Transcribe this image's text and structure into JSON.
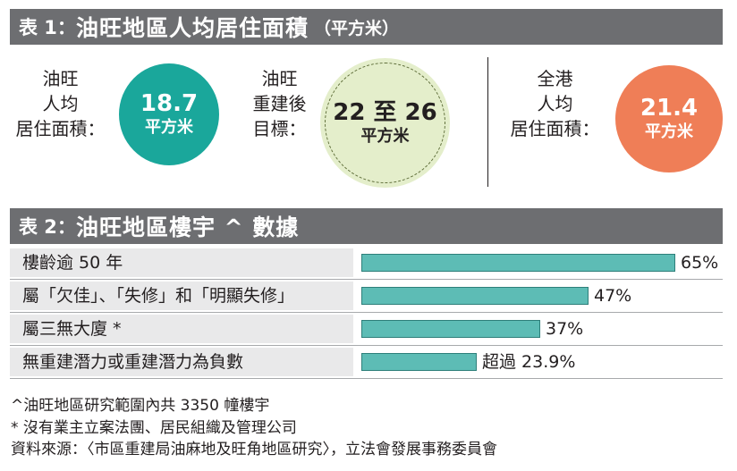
{
  "table1": {
    "prefix": "表 1：",
    "title": "油旺地區人均居住面積",
    "unit": "（平方米）",
    "stats": [
      {
        "label": "油旺\n人均\n居住面積：",
        "value": "18.7",
        "unit": "平方米",
        "color": "#1aa79b"
      },
      {
        "label": "油旺\n重建後\n目標：",
        "value": "22 至 26",
        "unit": "平方米",
        "color": "#e4eecb"
      },
      {
        "label": "全港\n人均\n居住面積：",
        "value": "21.4",
        "unit": "平方米",
        "color": "#ef7e57"
      }
    ]
  },
  "table2": {
    "prefix": "表 2：",
    "title": "油旺地區樓宇 ^ 數據"
  },
  "chart_data": {
    "type": "bar",
    "orientation": "horizontal",
    "categories": [
      "樓齡逾 50 年",
      "屬「欠佳」、「失修」和「明顯失修」",
      "屬三無大廈 *",
      "無重建潛力或重建潛力為負數"
    ],
    "values": [
      65,
      47,
      37,
      23.9
    ],
    "value_labels": [
      "65%",
      "47%",
      "37%",
      "超過 23.9%"
    ],
    "bar_color": "#5dbcb5",
    "xlim": [
      0,
      100
    ]
  },
  "notes": {
    "caret": "^油旺地區研究範圍內共 3350 幢樓宇",
    "star": "* 沒有業主立案法團、居民組織及管理公司",
    "source": "資料來源：〈市區重建局油麻地及旺角地區研究〉，立法會發展事務委員會"
  }
}
